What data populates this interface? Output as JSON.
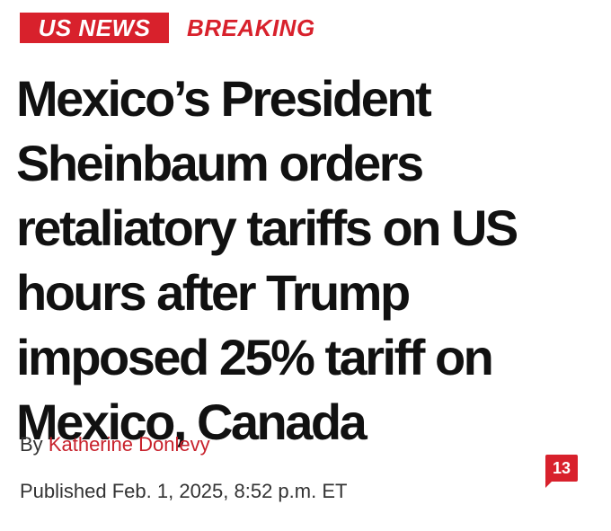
{
  "header": {
    "section": "US NEWS",
    "label": "BREAKING"
  },
  "headline": [
    "Mexico’s President",
    "Sheinbaum orders",
    "retaliatory tariffs on US",
    "hours after Trump",
    "imposed 25% tariff on",
    "Mexico, Canada"
  ],
  "byline": {
    "prefix": "By",
    "author": "Katherine Donlevy"
  },
  "published": "Published Feb. 1, 2025, 8:52 p.m. ET",
  "comments": "13"
}
